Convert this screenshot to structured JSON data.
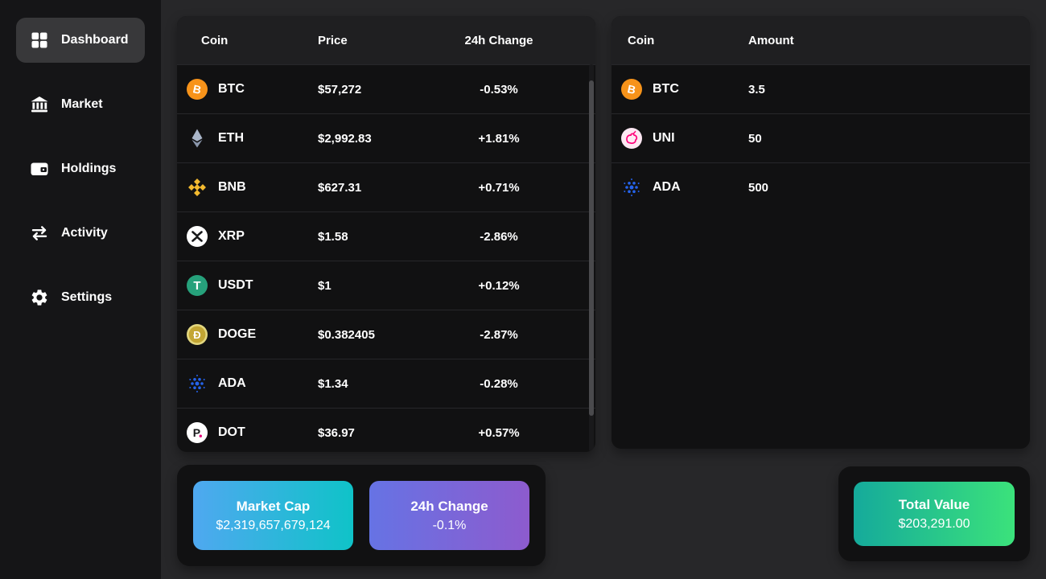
{
  "sidebar": {
    "items": [
      {
        "label": "Dashboard",
        "icon": "dashboard",
        "active": true
      },
      {
        "label": "Market",
        "icon": "market",
        "active": false
      },
      {
        "label": "Holdings",
        "icon": "holdings",
        "active": false
      },
      {
        "label": "Activity",
        "icon": "activity",
        "active": false
      },
      {
        "label": "Settings",
        "icon": "settings",
        "active": false
      }
    ]
  },
  "market_table": {
    "headers": [
      "Coin",
      "Price",
      "24h Change"
    ],
    "rows": [
      {
        "icon": "btc",
        "symbol": "BTC",
        "price": "$57,272",
        "change": "-0.53%"
      },
      {
        "icon": "eth",
        "symbol": "ETH",
        "price": "$2,992.83",
        "change": "+1.81%"
      },
      {
        "icon": "bnb",
        "symbol": "BNB",
        "price": "$627.31",
        "change": "+0.71%"
      },
      {
        "icon": "xrp",
        "symbol": "XRP",
        "price": "$1.58",
        "change": "-2.86%"
      },
      {
        "icon": "usdt",
        "symbol": "USDT",
        "price": "$1",
        "change": "+0.12%"
      },
      {
        "icon": "doge",
        "symbol": "DOGE",
        "price": "$0.382405",
        "change": "-2.87%"
      },
      {
        "icon": "ada",
        "symbol": "ADA",
        "price": "$1.34",
        "change": "-0.28%"
      },
      {
        "icon": "dot",
        "symbol": "DOT",
        "price": "$36.97",
        "change": "+0.57%"
      }
    ]
  },
  "holdings_table": {
    "headers": [
      "Coin",
      "Amount"
    ],
    "rows": [
      {
        "icon": "btc",
        "symbol": "BTC",
        "amount": "3.5"
      },
      {
        "icon": "uni",
        "symbol": "UNI",
        "amount": "50"
      },
      {
        "icon": "ada",
        "symbol": "ADA",
        "amount": "500"
      }
    ]
  },
  "stats": {
    "market_cap": {
      "label": "Market Cap",
      "value": "$2,319,657,679,124",
      "gradient_start": "#4fa8f0",
      "gradient_end": "#0fc3c8"
    },
    "day_change": {
      "label": "24h Change",
      "value": "-0.1%",
      "gradient_start": "#6673e4",
      "gradient_end": "#8d5bce"
    },
    "total_value": {
      "label": "Total Value",
      "value": "$203,291.00",
      "gradient_start": "#15aa9b",
      "gradient_end": "#3be27b"
    }
  },
  "colors": {
    "page_bg": "#272729",
    "sidebar_bg": "#151517",
    "panel_bg": "#111112",
    "panel_header_bg": "#1f1f21",
    "active_item_bg": "#38383a",
    "bitcoin_orange": "#f7931a",
    "tether_teal": "#26a17b",
    "binance_yellow": "#f3ba2f",
    "cardano_blue": "#2563eb",
    "uniswap_pink": "#ff007a"
  }
}
